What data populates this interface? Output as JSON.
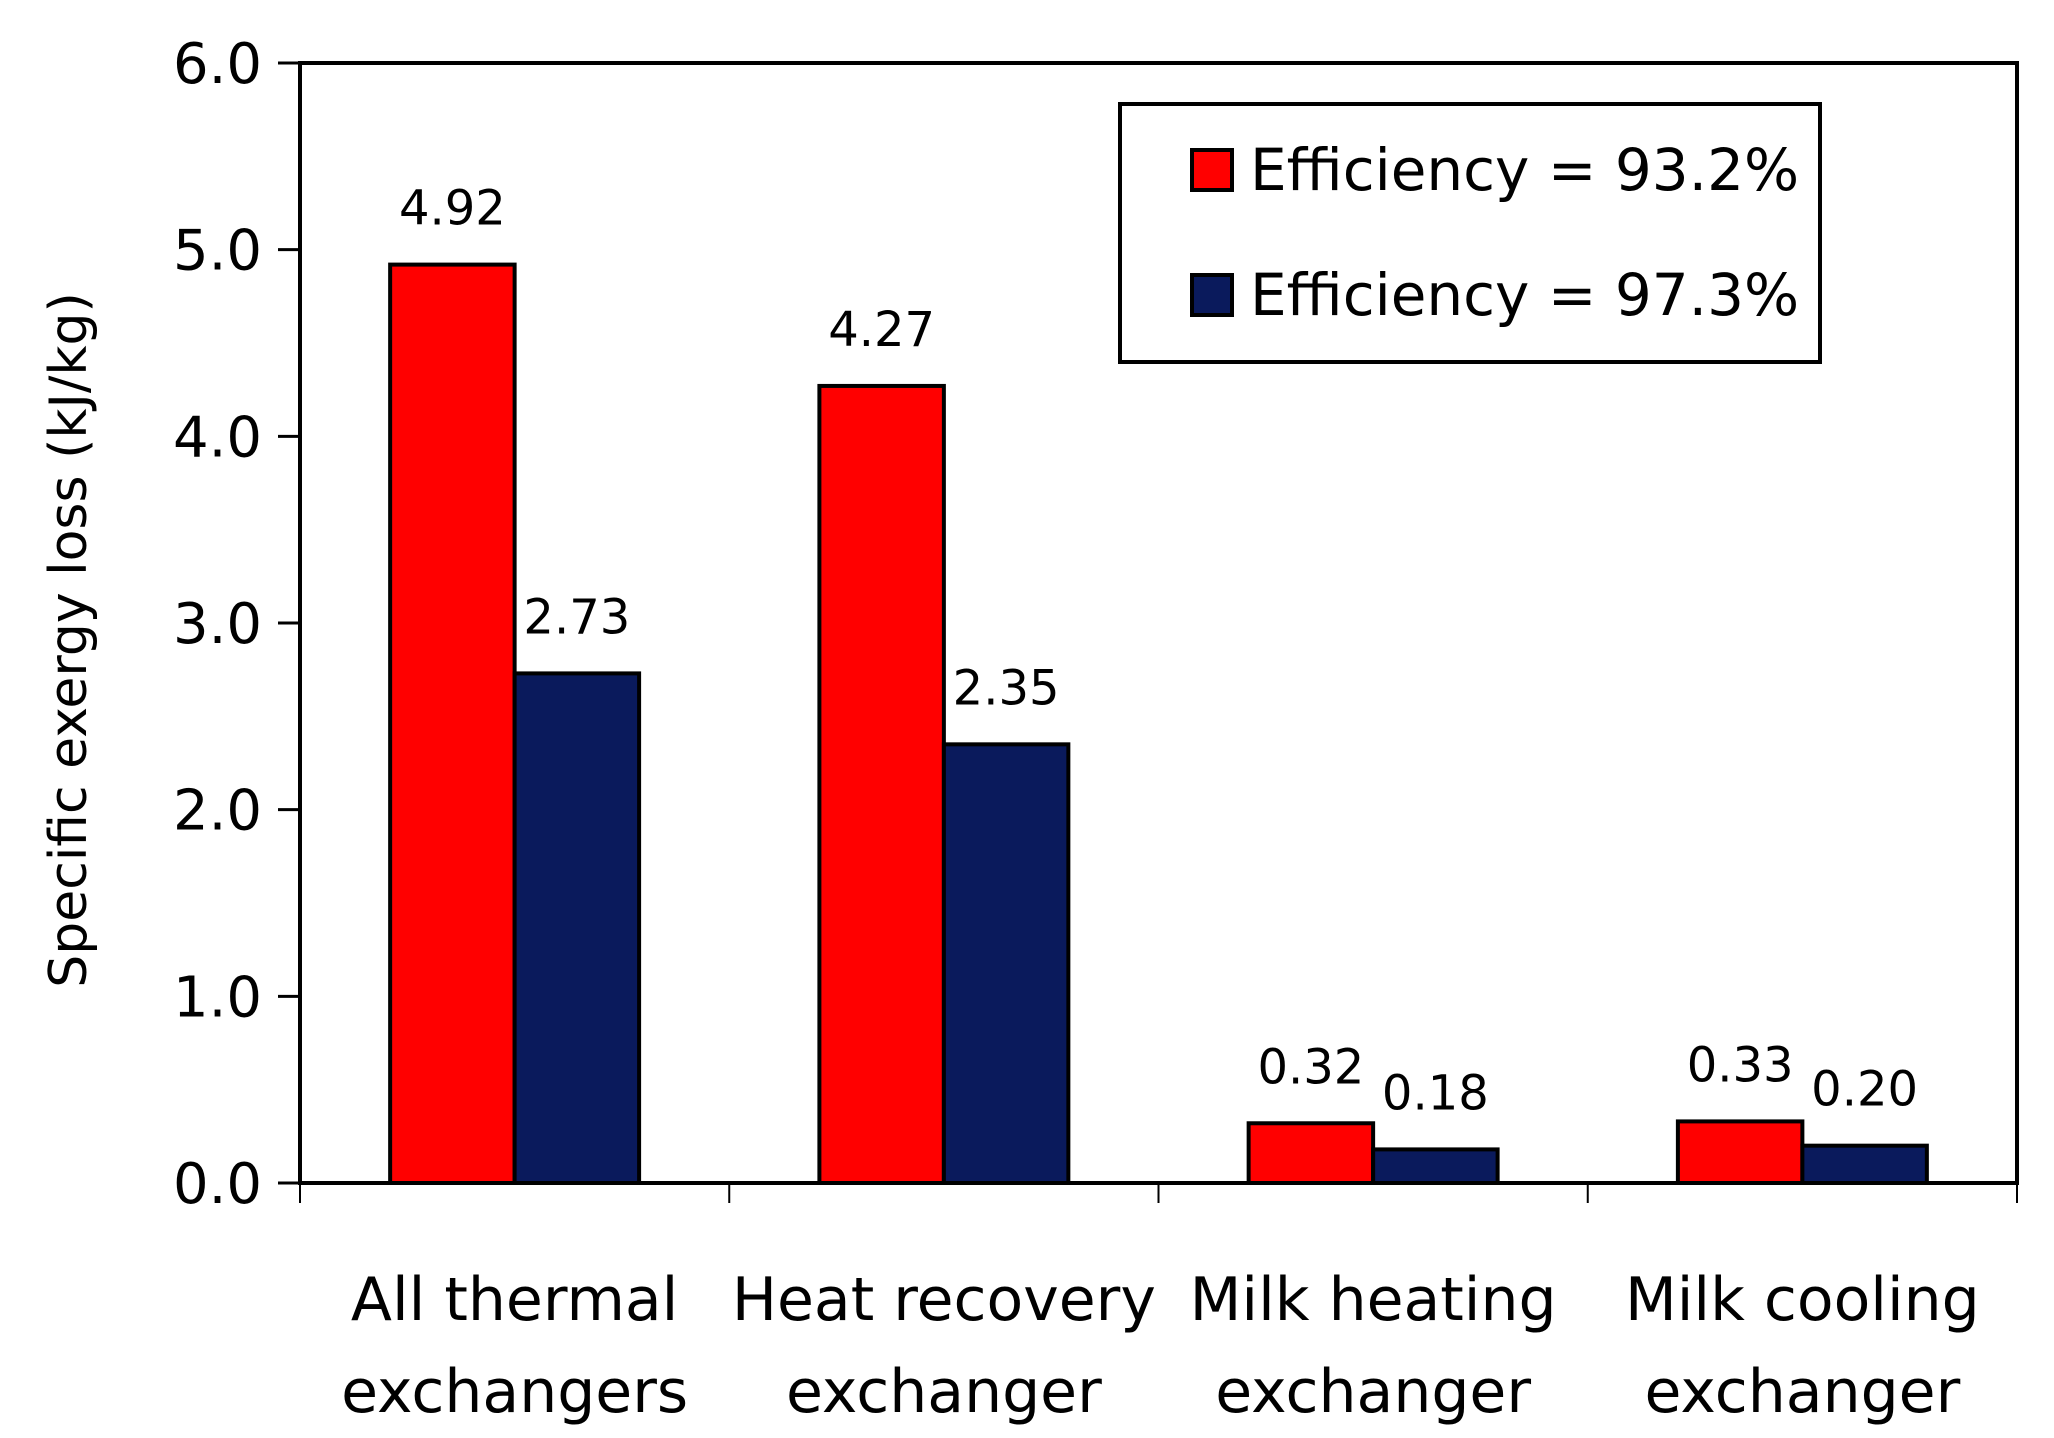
{
  "chart_data": {
    "type": "bar",
    "title": "",
    "xlabel": "",
    "ylabel": "Specific exergy loss (kJ/kg)",
    "ylim": [
      0,
      6
    ],
    "yticks": [
      "0.0",
      "1.0",
      "2.0",
      "3.0",
      "4.0",
      "5.0",
      "6.0"
    ],
    "categories": [
      [
        "All thermal",
        "exchangers"
      ],
      [
        "Heat recovery",
        "exchanger"
      ],
      [
        "Milk heating",
        "exchanger"
      ],
      [
        "Milk cooling",
        "exchanger"
      ]
    ],
    "series": [
      {
        "name": "Efficiency = 93.2%",
        "color": "#ff0000",
        "values": [
          4.92,
          4.27,
          0.32,
          0.33
        ],
        "labels": [
          "4.92",
          "4.27",
          "0.32",
          "0.33"
        ]
      },
      {
        "name": "Efficiency = 97.3%",
        "color": "#0a1a5c",
        "values": [
          2.73,
          2.35,
          0.18,
          0.2
        ],
        "labels": [
          "2.73",
          "2.35",
          "0.18",
          "0.20"
        ]
      }
    ],
    "legend_position": "top-right",
    "grid": false
  }
}
